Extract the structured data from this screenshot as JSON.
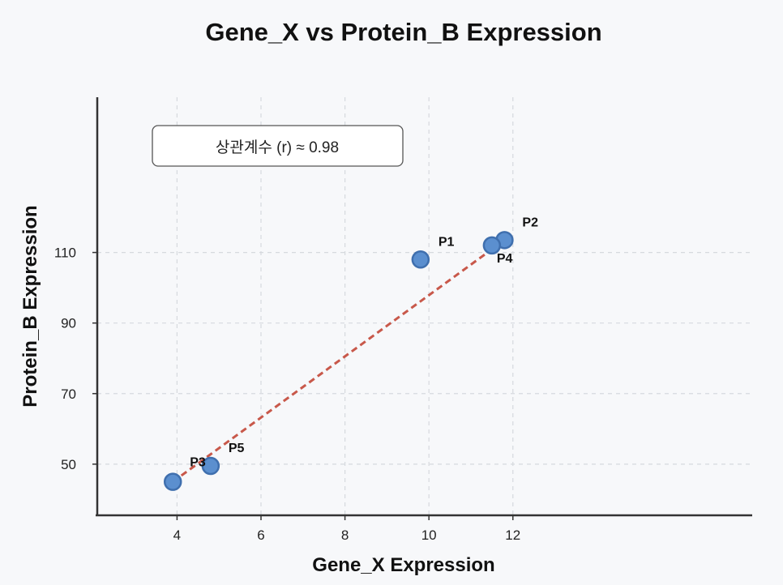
{
  "chart_data": {
    "type": "scatter",
    "title": "Gene_X vs Protein_B Expression",
    "xlabel": "Gene_X Expression",
    "ylabel": "Protein_B Expression",
    "xlim": [
      2.1,
      17.7
    ],
    "ylim": [
      35.5,
      154
    ],
    "x_ticks": [
      4,
      6,
      8,
      10,
      12
    ],
    "y_ticks": [
      50,
      70,
      90,
      110
    ],
    "grid": true,
    "annotation": "상관계수 (r) ≈ 0.98",
    "points": [
      {
        "label": "P1",
        "x": 9.8,
        "y": 108
      },
      {
        "label": "P2",
        "x": 11.8,
        "y": 113.5
      },
      {
        "label": "P3",
        "x": 3.9,
        "y": 45
      },
      {
        "label": "P4",
        "x": 11.5,
        "y": 112
      },
      {
        "label": "P5",
        "x": 4.8,
        "y": 49.5
      }
    ],
    "trendline": {
      "x": [
        3.9,
        11.8
      ],
      "y": [
        45,
        113.5
      ]
    },
    "colors": {
      "points": "#5b8fcf",
      "point_edge": "#3f6fae",
      "trendline": "#c8584a"
    }
  }
}
